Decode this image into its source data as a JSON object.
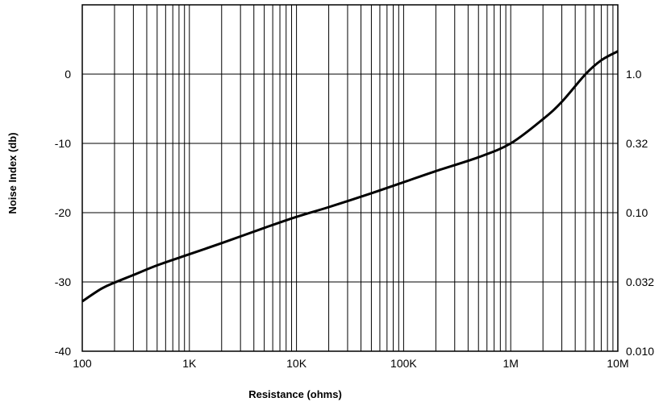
{
  "chart_data": {
    "type": "line",
    "title": "",
    "xlabel": "Resistance (ohms)",
    "ylabel": "Noise Index (db)",
    "x_scale": "log",
    "xlim": [
      100,
      10000000
    ],
    "ylim": [
      -40,
      10
    ],
    "grid": true,
    "x_tick_values": [
      100,
      1000,
      10000,
      100000,
      1000000,
      10000000
    ],
    "x_tick_labels": [
      "100",
      "1K",
      "10K",
      "100K",
      "1M",
      "10M"
    ],
    "y_tick_values": [
      0,
      -10,
      -20,
      -30,
      -40
    ],
    "y_tick_labels": [
      "0",
      "-10",
      "-20",
      "-30",
      "-40"
    ],
    "y2_tick_labels": [
      "1.0",
      "0.32",
      "0.10",
      "0.032",
      "0.010"
    ],
    "line_color": "#000000",
    "series": [
      {
        "x": [
          100,
          150,
          200,
          300,
          500,
          1000,
          2000,
          5000,
          10000,
          20000,
          50000,
          100000,
          200000,
          500000,
          1000000,
          2000000,
          3000000,
          5000000,
          7000000,
          10000000
        ],
        "y": [
          -32.8,
          -31.0,
          -30.1,
          -29.0,
          -27.6,
          -26.0,
          -24.4,
          -22.2,
          -20.6,
          -19.2,
          -17.2,
          -15.6,
          -14.0,
          -12.0,
          -10.0,
          -6.5,
          -4.0,
          0.0,
          2.0,
          3.3
        ]
      }
    ]
  }
}
